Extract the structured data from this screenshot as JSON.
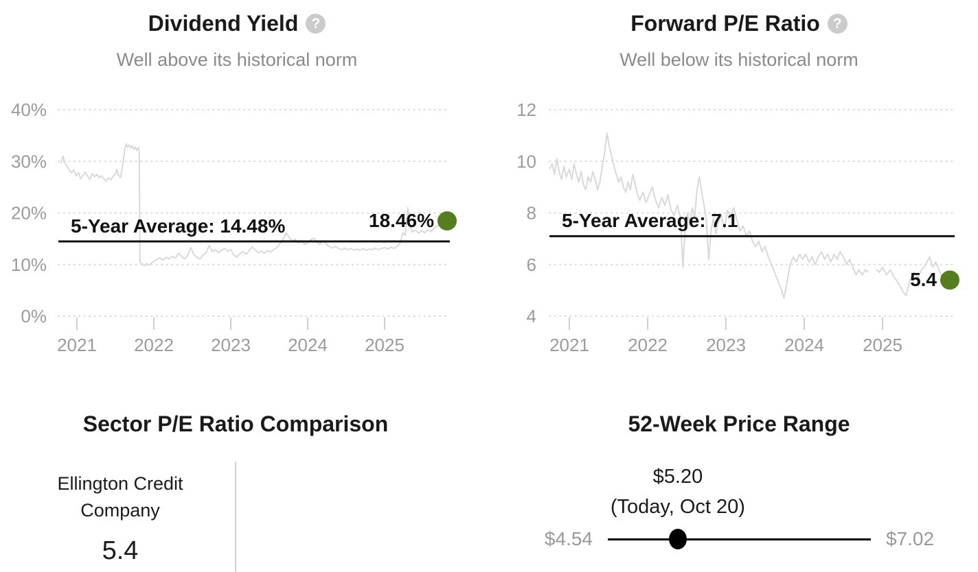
{
  "ui": {
    "help_glyph": "?"
  },
  "colors": {
    "accent_green": "#567d20",
    "data_line_gray": "#d9d9d9",
    "grid_gray": "#dcdcdc",
    "axis_text_gray": "#9b9b9b",
    "subtitle_gray": "#8a8a8a",
    "black_line": "#111111",
    "divider_gray": "#d0d0d0"
  },
  "panels": {
    "dividend_yield": {
      "title": "Dividend Yield",
      "subtitle": "Well above its historical norm"
    },
    "forward_pe": {
      "title": "Forward P/E Ratio",
      "subtitle": "Well below its historical norm"
    },
    "sector_comparison": {
      "title": "Sector P/E Ratio Comparison",
      "company": "Ellington Credit Company",
      "value": "5.4"
    },
    "price_range": {
      "title": "52-Week Price Range"
    }
  },
  "chart_data": [
    {
      "type": "line",
      "title": "Dividend Yield",
      "subtitle": "Well above its historical norm",
      "ylim": [
        0,
        40
      ],
      "ytick_values": [
        40,
        30,
        20,
        10,
        0
      ],
      "ytick_labels": [
        "40%",
        "30%",
        "20%",
        "10%",
        "0%"
      ],
      "xtick_values": [
        2021,
        2022,
        2023,
        2024,
        2025
      ],
      "xtick_labels": [
        "2021",
        "2022",
        "2023",
        "2024",
        "2025"
      ],
      "grid": "dotted-horizontal",
      "average": 14.48,
      "average_label": "5-Year Average: 14.48%",
      "current": 18.46,
      "current_label": "18.46%",
      "series": [
        {
          "name": "Dividend Yield %",
          "segments": [
            {
              "x": [
                2020.79,
                2020.82,
                2020.84,
                2020.87,
                2020.9,
                2020.93,
                2020.96,
                2020.99,
                2021.02,
                2021.05,
                2021.08,
                2021.11,
                2021.14,
                2021.17,
                2021.2,
                2021.23,
                2021.26,
                2021.29,
                2021.32,
                2021.35,
                2021.38,
                2021.41,
                2021.44,
                2021.47,
                2021.5,
                2021.52,
                2021.54,
                2021.57,
                2021.6,
                2021.62,
                2021.64,
                2021.66,
                2021.68,
                2021.7,
                2021.72,
                2021.74,
                2021.76,
                2021.78,
                2021.8,
                2021.81,
                2021.82,
                2021.85,
                2021.88,
                2021.91,
                2021.94,
                2021.97,
                2022.0,
                2022.04,
                2022.08,
                2022.12,
                2022.16,
                2022.2,
                2022.24,
                2022.28,
                2022.32,
                2022.36,
                2022.4,
                2022.44,
                2022.48,
                2022.52,
                2022.56,
                2022.6,
                2022.64,
                2022.68,
                2022.72,
                2022.76,
                2022.8,
                2022.84,
                2022.88,
                2022.92,
                2022.96,
                2023.0,
                2023.04,
                2023.08,
                2023.12,
                2023.16,
                2023.2,
                2023.24,
                2023.28,
                2023.32,
                2023.36,
                2023.4,
                2023.44,
                2023.48,
                2023.52,
                2023.56,
                2023.6,
                2023.64,
                2023.68,
                2023.72,
                2023.76,
                2023.8,
                2023.84,
                2023.88,
                2023.92,
                2023.96,
                2024.0,
                2024.04,
                2024.08,
                2024.12,
                2024.16,
                2024.2,
                2024.24,
                2024.28,
                2024.32,
                2024.36,
                2024.4,
                2024.44,
                2024.48,
                2024.52,
                2024.56,
                2024.6,
                2024.64,
                2024.68,
                2024.72,
                2024.76,
                2024.8,
                2024.84,
                2024.88,
                2024.92,
                2024.96,
                2025.0,
                2025.04,
                2025.08,
                2025.12,
                2025.16,
                2025.2,
                2025.24,
                2025.27,
                2025.3,
                2025.33,
                2025.36,
                2025.4,
                2025.44,
                2025.48,
                2025.52,
                2025.56,
                2025.6,
                2025.64,
                2025.68,
                2025.72,
                2025.75
              ],
              "y": [
                29.6,
                31.0,
                29.8,
                29.1,
                28.3,
                27.8,
                28.4,
                27.2,
                27.8,
                26.6,
                27.3,
                27.9,
                27.1,
                26.5,
                27.6,
                27.0,
                27.5,
                26.8,
                27.2,
                26.6,
                26.2,
                26.8,
                26.4,
                27.1,
                27.6,
                28.4,
                27.3,
                26.9,
                29.8,
                32.2,
                33.4,
                32.8,
                33.2,
                32.6,
                33.0,
                32.3,
                32.8,
                32.1,
                32.7,
                31.9,
                10.5,
                10.1,
                9.8,
                10.2,
                9.9,
                10.3,
                10.6,
                11.0,
                11.3,
                10.9,
                11.4,
                11.1,
                11.6,
                11.2,
                12.2,
                11.6,
                11.1,
                11.8,
                13.3,
                12.0,
                11.4,
                11.1,
                11.9,
                12.3,
                13.7,
                12.5,
                12.9,
                12.3,
                12.8,
                13.1,
                12.6,
                12.9,
                11.8,
                11.5,
                12.1,
                12.5,
                12.0,
                12.7,
                13.4,
                12.8,
                12.3,
                12.6,
                12.2,
                12.7,
                12.4,
                12.9,
                13.3,
                14.0,
                14.9,
                16.1,
                15.3,
                14.6,
                14.9,
                14.2,
                14.7,
                13.9,
                14.2,
                14.8,
                15.1,
                14.4,
                13.9,
                14.6,
                14.0,
                13.5,
                13.2,
                13.5,
                13.1,
                12.9,
                13.2,
                12.9,
                13.1,
                12.8,
                13.0,
                12.8,
                13.1,
                12.8,
                13.0,
                12.9,
                13.2,
                12.9,
                13.1,
                13.3,
                13.0,
                13.4,
                13.1,
                13.5,
                14.1,
                16.2,
                15.7,
                21.0,
                17.6,
                16.3,
                16.7,
                16.1,
                16.5,
                16.2,
                16.7,
                16.4,
                17.0,
                17.4,
                17.8,
                18.2
              ]
            }
          ]
        }
      ]
    },
    {
      "type": "line",
      "title": "Forward P/E Ratio",
      "subtitle": "Well below its historical norm",
      "ylim": [
        4,
        12
      ],
      "ytick_values": [
        12,
        10,
        8,
        6,
        4
      ],
      "ytick_labels": [
        "12",
        "10",
        "8",
        "6",
        "4"
      ],
      "xtick_values": [
        2021,
        2022,
        2023,
        2024,
        2025
      ],
      "xtick_labels": [
        "2021",
        "2022",
        "2023",
        "2024",
        "2025"
      ],
      "grid": "dotted-horizontal",
      "average": 7.1,
      "average_label": "5-Year Average: 7.1",
      "current": 5.4,
      "current_label": "5.4",
      "series": [
        {
          "name": "Forward P/E",
          "segments": [
            {
              "x": [
                2020.75,
                2020.78,
                2020.81,
                2020.84,
                2020.87,
                2020.9,
                2020.93,
                2020.96,
                2021.0,
                2021.03,
                2021.06,
                2021.09,
                2021.12,
                2021.15,
                2021.18,
                2021.21,
                2021.24,
                2021.27,
                2021.3,
                2021.33,
                2021.36,
                2021.39,
                2021.42,
                2021.45,
                2021.48,
                2021.51,
                2021.54,
                2021.57,
                2021.6,
                2021.63,
                2021.66,
                2021.69,
                2021.72,
                2021.75,
                2021.78,
                2021.81,
                2021.84,
                2021.87,
                2021.9,
                2021.94,
                2021.98,
                2022.02,
                2022.06,
                2022.1,
                2022.14,
                2022.18,
                2022.22,
                2022.26,
                2022.3,
                2022.34,
                2022.38,
                2022.42,
                2022.45,
                2022.48,
                2022.51,
                2022.54,
                2022.57,
                2022.6,
                2022.63,
                2022.66,
                2022.69,
                2022.72,
                2022.75,
                2022.78,
                2022.81,
                2022.84,
                2022.87,
                2022.9,
                2022.94,
                2022.98,
                2023.02,
                2023.06,
                2023.1,
                2023.14,
                2023.18,
                2023.22,
                2023.26,
                2023.3,
                2023.34,
                2023.38,
                2023.42,
                2023.46,
                2023.5,
                2023.54,
                2023.58,
                2023.62,
                2023.66,
                2023.7,
                2023.74,
                2023.78,
                2023.82,
                2023.86,
                2023.9,
                2023.94,
                2023.98,
                2024.02,
                2024.06,
                2024.1,
                2024.14,
                2024.18,
                2024.22,
                2024.26,
                2024.3,
                2024.34,
                2024.38,
                2024.42,
                2024.46,
                2024.5,
                2024.54,
                2024.58,
                2024.62,
                2024.66,
                2024.7,
                2024.74,
                2024.78,
                2024.82
              ],
              "y": [
                9.7,
                9.9,
                9.5,
                10.1,
                9.6,
                9.3,
                9.8,
                9.4,
                9.7,
                9.3,
                9.9,
                9.5,
                9.2,
                9.6,
                9.1,
                8.9,
                9.4,
                9.2,
                9.6,
                9.3,
                8.9,
                9.2,
                9.8,
                10.3,
                11.1,
                10.6,
                10.2,
                9.8,
                9.5,
                9.2,
                9.4,
                9.0,
                8.8,
                9.2,
                8.9,
                9.5,
                9.1,
                8.7,
                8.5,
                8.8,
                8.4,
                8.7,
                9.0,
                8.5,
                8.2,
                8.6,
                8.3,
                8.7,
                8.1,
                7.9,
                8.3,
                7.8,
                5.9,
                7.4,
                8.0,
                7.6,
                8.2,
                7.8,
                8.9,
                9.4,
                8.8,
                8.3,
                7.7,
                6.2,
                7.3,
                7.8,
                7.2,
                7.6,
                7.9,
                7.4,
                8.1,
                7.8,
                8.2,
                7.7,
                7.3,
                7.5,
                7.1,
                7.3,
                6.9,
                6.7,
                6.9,
                6.5,
                6.7,
                6.3,
                6.0,
                5.7,
                5.4,
                5.1,
                4.7,
                5.3,
                6.0,
                6.3,
                6.1,
                6.4,
                6.2,
                6.4,
                6.1,
                6.3,
                6.0,
                6.3,
                6.5,
                6.2,
                6.4,
                6.1,
                6.4,
                6.2,
                6.5,
                6.3,
                6.0,
                6.2,
                5.9,
                5.6,
                5.8,
                5.6,
                5.8,
                5.7
              ]
            },
            {
              "x": [
                2024.92,
                2024.96,
                2025.0,
                2025.05,
                2025.1,
                2025.15,
                2025.2,
                2025.25,
                2025.3,
                2025.35,
                2025.4,
                2025.45,
                2025.5,
                2025.55,
                2025.6,
                2025.64,
                2025.68,
                2025.72,
                2025.76
              ],
              "y": [
                5.8,
                5.7,
                5.9,
                5.6,
                5.8,
                5.5,
                5.3,
                5.0,
                4.8,
                5.4,
                5.7,
                5.5,
                5.8,
                6.0,
                6.3,
                5.9,
                6.1,
                5.8,
                5.5
              ]
            }
          ]
        }
      ]
    },
    {
      "type": "bar",
      "orientation": "horizontal",
      "title": "Sector P/E Ratio Comparison",
      "categories": [
        "Ellington Credit Company"
      ],
      "values": [
        5.4
      ]
    },
    {
      "type": "range",
      "title": "52-Week Price Range",
      "low": 4.54,
      "current": 5.2,
      "high": 7.02,
      "low_label": "$4.54",
      "current_label": "$5.20",
      "current_sublabel": "(Today, Oct 20)",
      "high_label": "$7.02"
    }
  ]
}
